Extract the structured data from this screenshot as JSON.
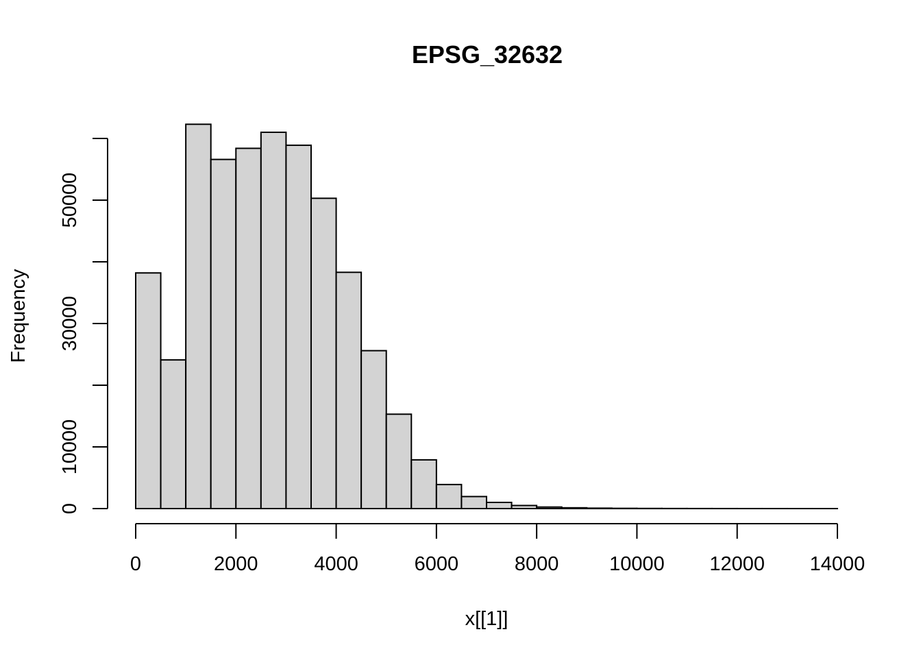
{
  "chart_data": {
    "type": "bar",
    "title": "EPSG_32632",
    "xlabel": "x[[1]]",
    "ylabel": "Frequency",
    "xlim": [
      0,
      14000
    ],
    "ylim": [
      0,
      60000
    ],
    "x_ticks": [
      0,
      2000,
      4000,
      6000,
      8000,
      10000,
      12000,
      14000
    ],
    "x_tick_labels": [
      "0",
      "2000",
      "4000",
      "6000",
      "8000",
      "10000",
      "12000",
      "14000"
    ],
    "y_ticks": [
      0,
      10000,
      20000,
      30000,
      40000,
      50000,
      60000
    ],
    "y_tick_labels": [
      "0",
      "10000",
      "",
      "30000",
      "",
      "50000",
      ""
    ],
    "bin_edges": [
      0,
      500,
      1000,
      1500,
      2000,
      2500,
      3000,
      3500,
      4000,
      4500,
      5000,
      5500,
      6000,
      6500,
      7000,
      7500,
      8000,
      8500,
      9000,
      9500,
      10000,
      10500,
      11000,
      11500,
      12000,
      12500,
      13000,
      13500,
      14000
    ],
    "values": [
      38200,
      24100,
      62300,
      56600,
      58400,
      61000,
      58900,
      50300,
      38300,
      25600,
      15300,
      7900,
      3900,
      1950,
      1000,
      500,
      250,
      130,
      70,
      40,
      25,
      15,
      10,
      6,
      4,
      3,
      2,
      1
    ],
    "bar_fill": "#d3d3d3",
    "bar_stroke": "#000000",
    "grid": false,
    "legend": "none"
  }
}
